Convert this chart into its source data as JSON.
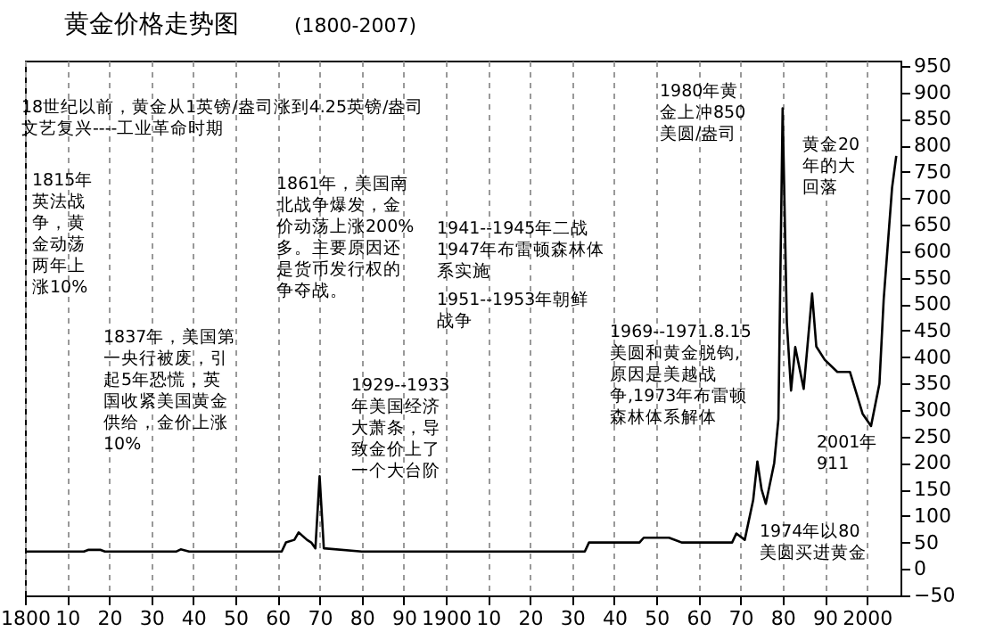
{
  "chart_data": {
    "type": "line",
    "title": "黄金价格走势图",
    "subtitle": "(1800-2007)",
    "x": [
      1800,
      1814,
      1815,
      1818,
      1819,
      1836,
      1837,
      1839,
      1861,
      1862,
      1864,
      1865,
      1867,
      1868,
      1869,
      1870,
      1871,
      1880,
      1933,
      1934,
      1946,
      1947,
      1953,
      1956,
      1968,
      1969,
      1971,
      1973,
      1974,
      1975,
      1976,
      1978,
      1979,
      1980,
      1981,
      1982,
      1983,
      1985,
      1987,
      1988,
      1990,
      1993,
      1996,
      1999,
      2001,
      2003,
      2004,
      2006,
      2007
    ],
    "series": [
      {
        "color": "#000000",
        "values": [
          33,
          33,
          36,
          36,
          33,
          33,
          37,
          33,
          33,
          50,
          55,
          69,
          55,
          50,
          39,
          175,
          39,
          33,
          33,
          50,
          50,
          59,
          59,
          50,
          50,
          67,
          55,
          130,
          203,
          150,
          123,
          200,
          283,
          870,
          465,
          337,
          419,
          340,
          520,
          420,
          395,
          372,
          372,
          293,
          270,
          350,
          508,
          720,
          780
        ]
      }
    ],
    "xlim": [
      1800,
      2008
    ],
    "ylim": [
      -50,
      960
    ],
    "xticks": [
      {
        "value": 1800,
        "label": "1800"
      },
      {
        "value": 1810,
        "label": "10"
      },
      {
        "value": 1820,
        "label": "20"
      },
      {
        "value": 1830,
        "label": "30"
      },
      {
        "value": 1840,
        "label": "40"
      },
      {
        "value": 1850,
        "label": "50"
      },
      {
        "value": 1860,
        "label": "60"
      },
      {
        "value": 1870,
        "label": "70"
      },
      {
        "value": 1880,
        "label": "80"
      },
      {
        "value": 1890,
        "label": "90"
      },
      {
        "value": 1900,
        "label": "1900"
      },
      {
        "value": 1910,
        "label": "10"
      },
      {
        "value": 1920,
        "label": "20"
      },
      {
        "value": 1930,
        "label": "30"
      },
      {
        "value": 1940,
        "label": "40"
      },
      {
        "value": 1950,
        "label": "50"
      },
      {
        "value": 1960,
        "label": "60"
      },
      {
        "value": 1970,
        "label": "70"
      },
      {
        "value": 1980,
        "label": "80"
      },
      {
        "value": 1990,
        "label": "90"
      },
      {
        "value": 2000,
        "label": "2000"
      }
    ],
    "yticks": [
      -50,
      0,
      50,
      100,
      150,
      200,
      250,
      300,
      350,
      400,
      450,
      500,
      550,
      600,
      650,
      700,
      750,
      800,
      850,
      900,
      950
    ],
    "grid": "x",
    "annotations": [
      "18世纪以前，黄金从1英镑/盎司涨到4.25英镑/盎司文艺复兴----工业革命时期",
      "1815年英法战争，黄金动荡两年上涨10%",
      "1837年，美国第一央行被废，引起5年恐慌，英国收紧美国黄金供给，金价上涨10%",
      "1861年，美国南北战争爆发，金价动荡上涨200%多。主要原因还是货币发行权的争夺战。",
      "1941--1945年二战1947年布雷顿森林体系实施",
      "1951--1953年朝鲜战争",
      "1929--1933年美国经济大萧条，导致金价上了一个大台阶",
      "1969--1971.8.15美圆和黄金脱钩,原因是美越战争,1973年布雷顿森林体系解体",
      "1980年黄金上冲850美圆/盎司",
      "黄金20年的大回落",
      "2001年911",
      "1974年以80美圆买进黄金"
    ]
  }
}
